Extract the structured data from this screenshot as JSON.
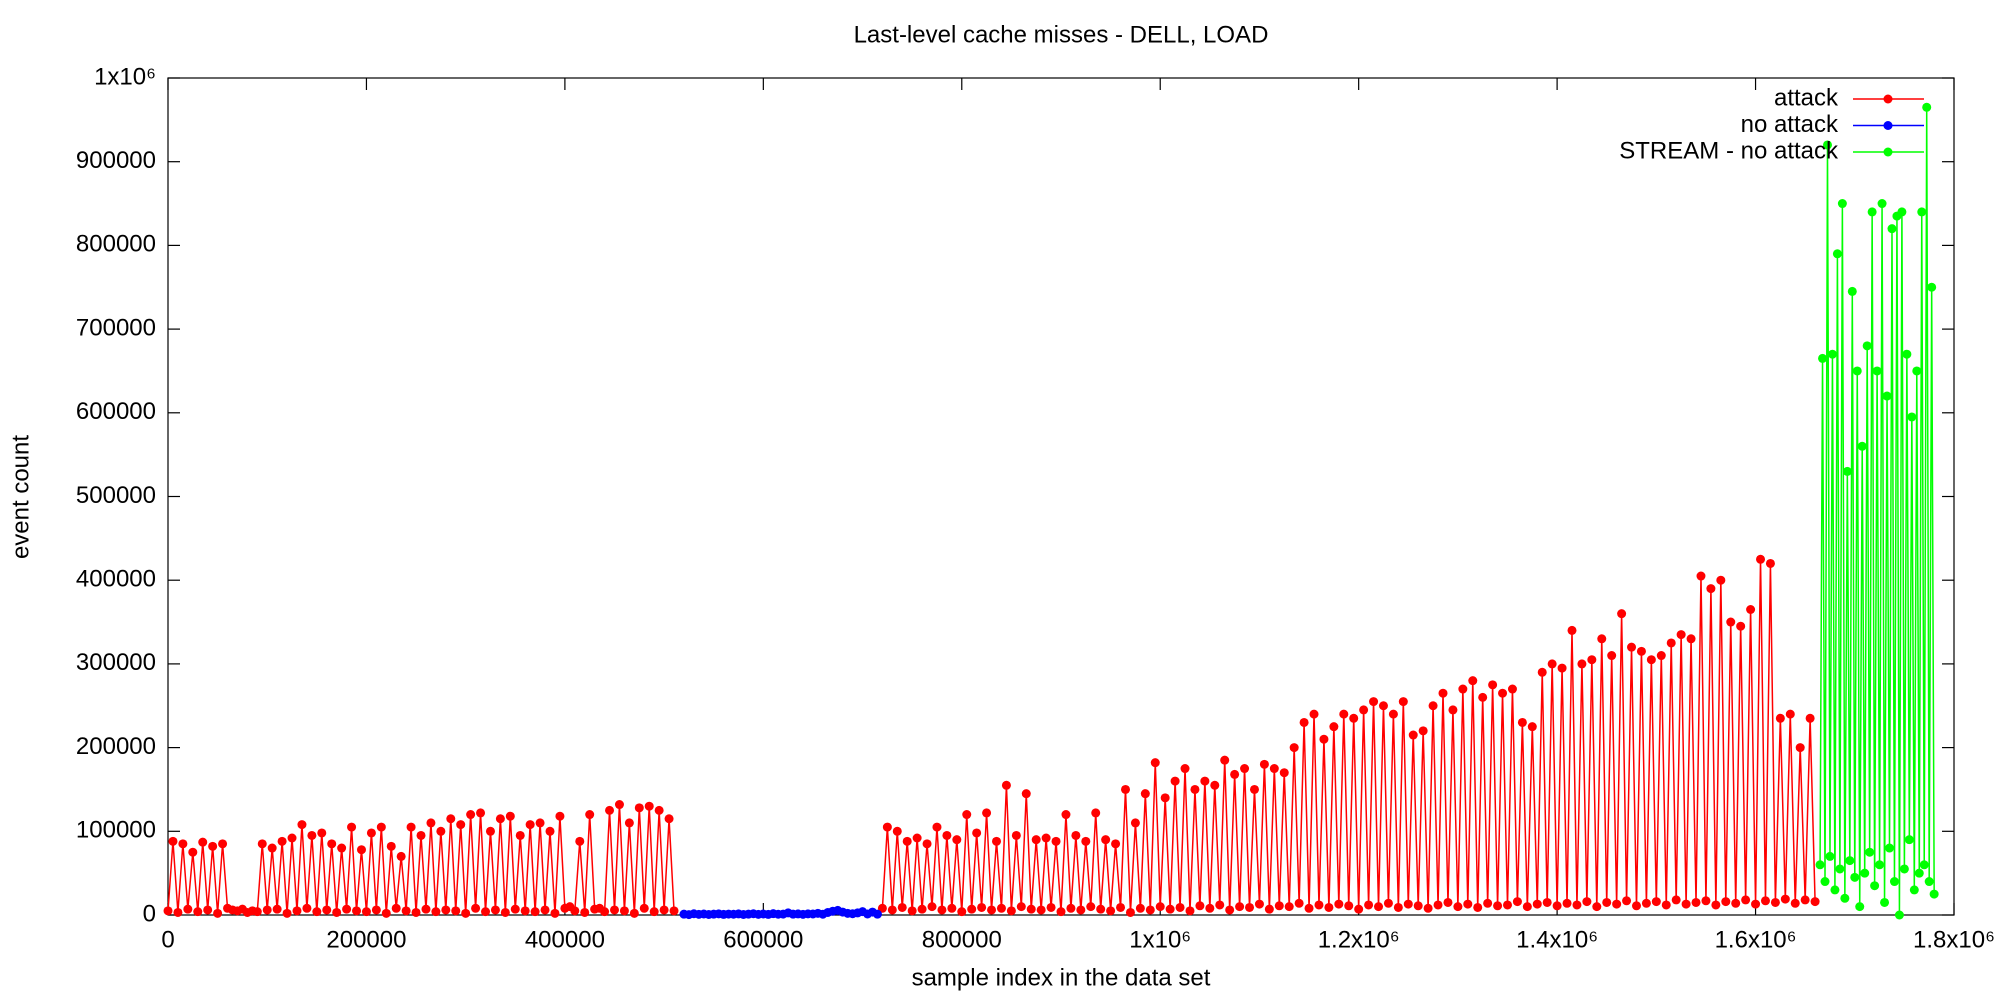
{
  "chart_data": {
    "type": "line",
    "title": "Last-level cache misses - DELL, LOAD",
    "x_label": "sample index in the data set",
    "y_label": "event count",
    "xlim": [
      0,
      1800000
    ],
    "ylim": [
      0,
      1000000
    ],
    "xticks": [
      0,
      200000,
      400000,
      600000,
      800000,
      {
        "value": 1000000,
        "label": "1x10⁶"
      },
      {
        "value": 1200000,
        "label": "1.2x10⁶"
      },
      {
        "value": 1400000,
        "label": "1.4x10⁶"
      },
      {
        "value": 1600000,
        "label": "1.6x10⁶"
      },
      {
        "value": 1800000,
        "label": "1.8x10⁶"
      }
    ],
    "yticks": [
      0,
      100000,
      200000,
      300000,
      400000,
      500000,
      600000,
      700000,
      800000,
      900000,
      {
        "value": 1000000,
        "label": "1x10⁶"
      }
    ],
    "grid": false,
    "legend": "top-right",
    "series": [
      {
        "name": "attack",
        "color": "#ff0000",
        "x": [
          0,
          5000,
          10000,
          15000,
          20000,
          25000,
          30000,
          35000,
          40000,
          45000,
          50000,
          55000,
          60000,
          65000,
          70000,
          75000,
          80000,
          85000,
          90000,
          95000,
          100000,
          105000,
          110000,
          115000,
          120000,
          125000,
          130000,
          135000,
          140000,
          145000,
          150000,
          155000,
          160000,
          165000,
          170000,
          175000,
          180000,
          185000,
          190000,
          195000,
          200000,
          205000,
          210000,
          215000,
          220000,
          225000,
          230000,
          235000,
          240000,
          245000,
          250000,
          255000,
          260000,
          265000,
          270000,
          275000,
          280000,
          285000,
          290000,
          295000,
          300000,
          305000,
          310000,
          315000,
          320000,
          325000,
          330000,
          335000,
          340000,
          345000,
          350000,
          355000,
          360000,
          365000,
          370000,
          375000,
          380000,
          385000,
          390000,
          395000,
          400000,
          405000,
          410000,
          415000,
          420000,
          425000,
          430000,
          435000,
          440000,
          445000,
          450000,
          455000,
          460000,
          465000,
          470000,
          475000,
          480000,
          485000,
          490000,
          495000,
          500000,
          505000,
          510000,
          615000,
          720000,
          725000,
          730000,
          735000,
          740000,
          745000,
          750000,
          755000,
          760000,
          765000,
          770000,
          775000,
          780000,
          785000,
          790000,
          795000,
          800000,
          805000,
          810000,
          815000,
          820000,
          825000,
          830000,
          835000,
          840000,
          845000,
          850000,
          855000,
          860000,
          865000,
          870000,
          875000,
          880000,
          885000,
          890000,
          895000,
          900000,
          905000,
          910000,
          915000,
          920000,
          925000,
          930000,
          935000,
          940000,
          945000,
          950000,
          955000,
          960000,
          965000,
          970000,
          975000,
          980000,
          985000,
          990000,
          995000,
          1000000,
          1005000,
          1010000,
          1015000,
          1020000,
          1025000,
          1030000,
          1035000,
          1040000,
          1045000,
          1050000,
          1055000,
          1060000,
          1065000,
          1070000,
          1075000,
          1080000,
          1085000,
          1090000,
          1095000,
          1100000,
          1105000,
          1110000,
          1115000,
          1120000,
          1125000,
          1130000,
          1135000,
          1140000,
          1145000,
          1150000,
          1155000,
          1160000,
          1165000,
          1170000,
          1175000,
          1180000,
          1185000,
          1190000,
          1195000,
          1200000,
          1205000,
          1210000,
          1215000,
          1220000,
          1225000,
          1230000,
          1235000,
          1240000,
          1245000,
          1250000,
          1255000,
          1260000,
          1265000,
          1270000,
          1275000,
          1280000,
          1285000,
          1290000,
          1295000,
          1300000,
          1305000,
          1310000,
          1315000,
          1320000,
          1325000,
          1330000,
          1335000,
          1340000,
          1345000,
          1350000,
          1355000,
          1360000,
          1365000,
          1370000,
          1375000,
          1380000,
          1385000,
          1390000,
          1395000,
          1400000,
          1405000,
          1410000,
          1415000,
          1420000,
          1425000,
          1430000,
          1435000,
          1440000,
          1445000,
          1450000,
          1455000,
          1460000,
          1465000,
          1470000,
          1475000,
          1480000,
          1485000,
          1490000,
          1495000,
          1500000,
          1505000,
          1510000,
          1515000,
          1520000,
          1525000,
          1530000,
          1535000,
          1540000,
          1545000,
          1550000,
          1555000,
          1560000,
          1565000,
          1570000,
          1575000,
          1580000,
          1585000,
          1590000,
          1595000,
          1600000,
          1605000,
          1610000,
          1615000,
          1620000,
          1625000,
          1630000,
          1635000,
          1640000,
          1645000,
          1650000,
          1655000,
          1660000
        ],
        "values": [
          5000,
          88000,
          3000,
          85000,
          7000,
          75000,
          4000,
          87000,
          6000,
          82000,
          2000,
          85000,
          8000,
          6000,
          5000,
          7000,
          3000,
          5000,
          4000,
          85000,
          6000,
          80000,
          7000,
          88000,
          2000,
          92000,
          5000,
          108000,
          8000,
          95000,
          4000,
          98000,
          6000,
          85000,
          3000,
          80000,
          7000,
          105000,
          5000,
          78000,
          4000,
          98000,
          6000,
          105000,
          2000,
          82000,
          8000,
          70000,
          5000,
          105000,
          3000,
          95000,
          7000,
          110000,
          4000,
          100000,
          6000,
          115000,
          5000,
          108000,
          2000,
          120000,
          8000,
          122000,
          4000,
          100000,
          6000,
          115000,
          3000,
          118000,
          7000,
          95000,
          5000,
          108000,
          4000,
          110000,
          6000,
          100000,
          2000,
          118000,
          8000,
          10000,
          5000,
          88000,
          3000,
          120000,
          7000,
          8000,
          4000,
          125000,
          6000,
          132000,
          5000,
          110000,
          2000,
          128000,
          8000,
          130000,
          4000,
          125000,
          6000,
          115000,
          5000,
          null,
          8000,
          105000,
          6000,
          100000,
          9000,
          88000,
          5000,
          92000,
          7000,
          85000,
          10000,
          105000,
          6000,
          95000,
          8000,
          90000,
          4000,
          120000,
          7000,
          98000,
          9000,
          122000,
          6000,
          88000,
          8000,
          155000,
          5000,
          95000,
          10000,
          145000,
          7000,
          90000,
          6000,
          92000,
          9000,
          88000,
          4000,
          120000,
          8000,
          95000,
          6000,
          88000,
          10000,
          122000,
          7000,
          90000,
          5000,
          85000,
          9000,
          150000,
          3000,
          110000,
          8000,
          145000,
          6000,
          182000,
          10000,
          140000,
          7000,
          160000,
          9000,
          175000,
          5000,
          150000,
          11000,
          160000,
          8000,
          155000,
          12000,
          185000,
          6000,
          168000,
          10000,
          175000,
          9000,
          150000,
          13000,
          180000,
          7000,
          175000,
          11000,
          170000,
          10000,
          200000,
          14000,
          230000,
          8000,
          240000,
          12000,
          210000,
          9000,
          225000,
          13000,
          240000,
          11000,
          235000,
          7000,
          245000,
          12000,
          255000,
          10000,
          250000,
          14000,
          240000,
          9000,
          255000,
          13000,
          215000,
          11000,
          220000,
          8000,
          250000,
          12000,
          265000,
          15000,
          245000,
          10000,
          270000,
          13000,
          280000,
          9000,
          260000,
          14000,
          275000,
          11000,
          265000,
          12000,
          270000,
          16000,
          230000,
          10000,
          225000,
          13000,
          290000,
          15000,
          300000,
          11000,
          295000,
          14000,
          340000,
          12000,
          300000,
          16000,
          305000,
          10000,
          330000,
          15000,
          310000,
          13000,
          360000,
          17000,
          320000,
          11000,
          315000,
          14000,
          305000,
          16000,
          310000,
          12000,
          325000,
          18000,
          335000,
          13000,
          330000,
          15000,
          405000,
          17000,
          390000,
          12000,
          400000,
          16000,
          350000,
          14000,
          345000,
          18000,
          365000,
          13000,
          425000,
          17000,
          420000,
          15000,
          235000,
          19000,
          240000,
          14000,
          200000,
          18000,
          235000,
          16000
        ]
      },
      {
        "name": "no attack",
        "color": "#0000ff",
        "x": [
          520000,
          525000,
          530000,
          535000,
          540000,
          545000,
          550000,
          555000,
          560000,
          565000,
          570000,
          575000,
          580000,
          585000,
          590000,
          595000,
          600000,
          605000,
          610000,
          615000,
          620000,
          625000,
          630000,
          635000,
          640000,
          645000,
          650000,
          655000,
          660000,
          665000,
          670000,
          675000,
          680000,
          685000,
          690000,
          695000,
          700000,
          705000,
          710000,
          715000
        ],
        "values": [
          1000,
          500,
          1500,
          800,
          1200,
          600,
          1000,
          1400,
          700,
          1100,
          900,
          1300,
          600,
          1000,
          1500,
          800,
          1200,
          700,
          1600,
          900,
          1100,
          2500,
          1000,
          1300,
          800,
          1400,
          1200,
          2000,
          900,
          3000,
          4500,
          5500,
          3500,
          2000,
          1500,
          2500,
          4000,
          1200,
          3500,
          1000
        ]
      },
      {
        "name": "STREAM - no attack",
        "color": "#00ff00",
        "x": [
          1665000,
          1667500,
          1670000,
          1672500,
          1675000,
          1677500,
          1680000,
          1682500,
          1685000,
          1687500,
          1690000,
          1692500,
          1695000,
          1697500,
          1700000,
          1702500,
          1705000,
          1707500,
          1710000,
          1712500,
          1715000,
          1717500,
          1720000,
          1722500,
          1725000,
          1727500,
          1730000,
          1732500,
          1735000,
          1737500,
          1740000,
          1742500,
          1745000,
          1747500,
          1750000,
          1752500,
          1755000,
          1757500,
          1760000,
          1762500,
          1765000,
          1767500,
          1770000,
          1772500,
          1775000,
          1777500,
          1780000
        ],
        "values": [
          60000,
          665000,
          40000,
          920000,
          70000,
          670000,
          30000,
          790000,
          55000,
          850000,
          20000,
          530000,
          65000,
          745000,
          45000,
          650000,
          10000,
          560000,
          50000,
          680000,
          75000,
          840000,
          35000,
          650000,
          60000,
          850000,
          15000,
          620000,
          80000,
          820000,
          40000,
          835000,
          0,
          840000,
          55000,
          670000,
          90000,
          595000,
          30000,
          650000,
          50000,
          840000,
          60000,
          965000,
          40000,
          750000,
          25000
        ]
      }
    ]
  }
}
